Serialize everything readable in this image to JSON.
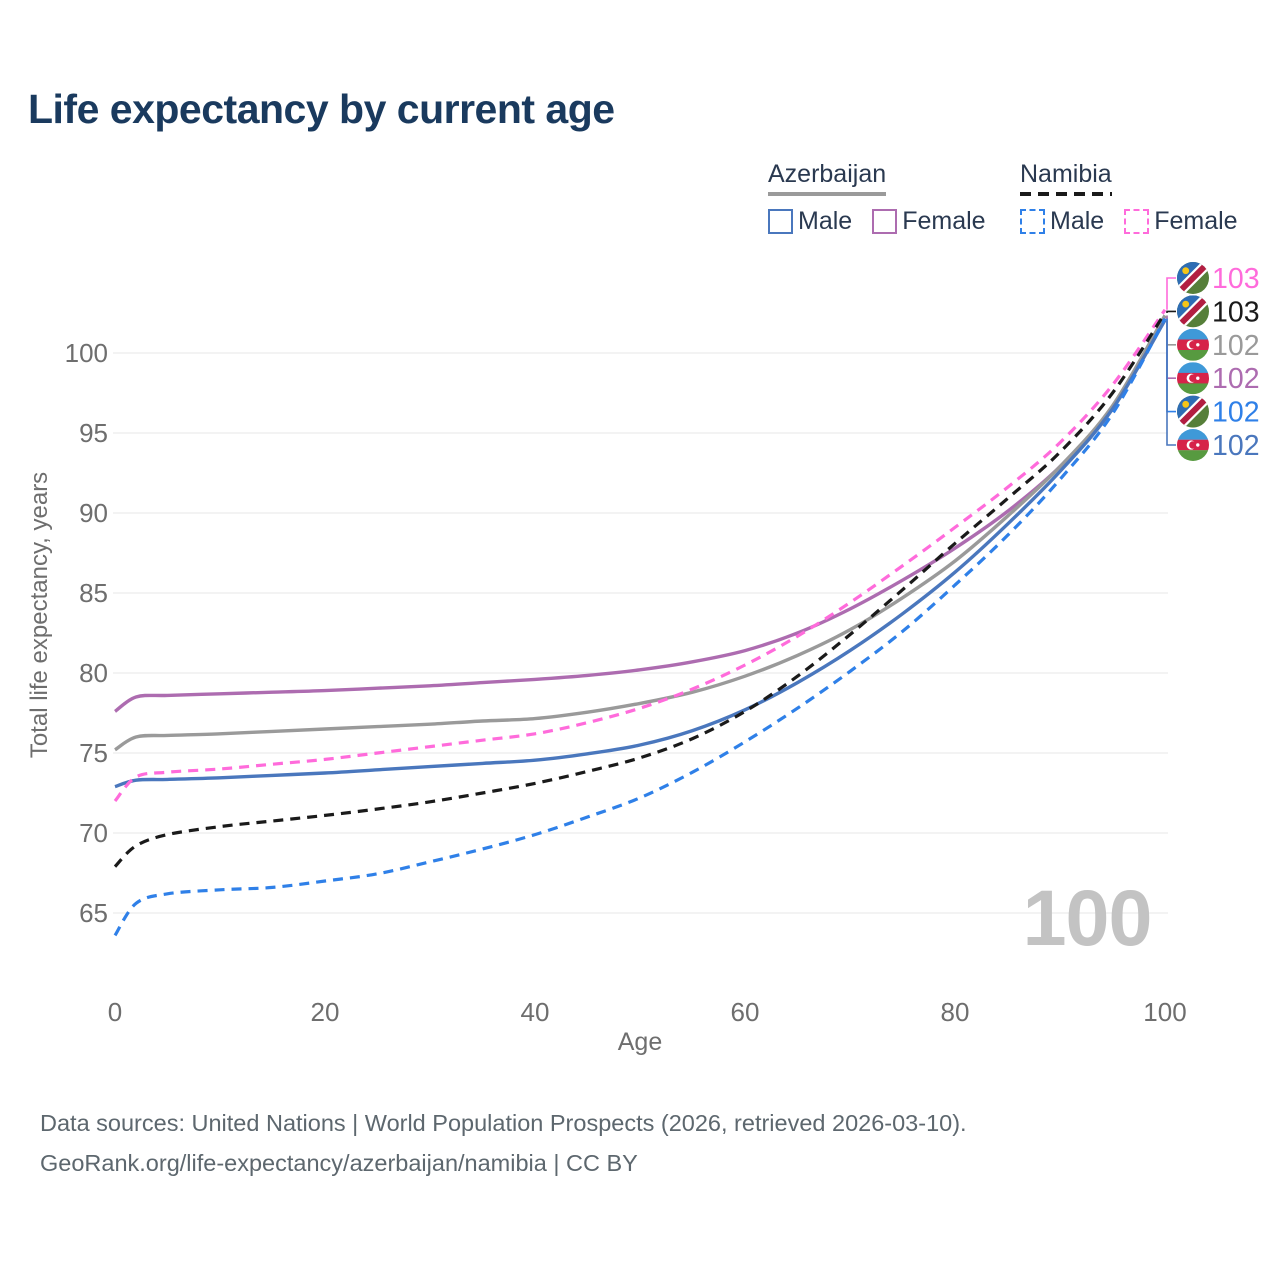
{
  "title": "Life expectancy by current age",
  "watermark": "100",
  "legend": {
    "groups": [
      {
        "country": "Azerbaijan",
        "line_style": "solid",
        "underline_color": "#9a9a9a",
        "items": [
          {
            "label": "Male",
            "color": "#4a77bd",
            "dashed": false
          },
          {
            "label": "Female",
            "color": "#ad6cb0",
            "dashed": false
          }
        ]
      },
      {
        "country": "Namibia",
        "line_style": "dashed",
        "underline_color": "#1a1a1a",
        "items": [
          {
            "label": "Male",
            "color": "#2f80e8",
            "dashed": true
          },
          {
            "label": "Female",
            "color": "#ff6bdb",
            "dashed": true
          }
        ]
      }
    ]
  },
  "footer": {
    "line1": "Data sources: United Nations | World Population Prospects (2026, retrieved 2026-03-10).",
    "line2": "GeoRank.org/life-expectancy/azerbaijan/namibia | CC BY"
  },
  "chart_data": {
    "type": "line",
    "title": "Life expectancy by current age",
    "xlabel": "Age",
    "ylabel": "Total life expectancy, years",
    "xticks": [
      0,
      20,
      40,
      60,
      80,
      100
    ],
    "yticks": [
      65,
      70,
      75,
      80,
      85,
      90,
      95,
      100
    ],
    "xlim": [
      0,
      100
    ],
    "ylim": [
      63,
      104
    ],
    "grid": "horizontal-only",
    "legend_position": "top-right",
    "ages": [
      0,
      2,
      5,
      10,
      15,
      20,
      25,
      30,
      35,
      40,
      45,
      50,
      55,
      60,
      65,
      70,
      75,
      80,
      85,
      90,
      95,
      100
    ],
    "series": [
      {
        "name": "Azerbaijan Female",
        "country": "Azerbaijan",
        "group": "Female",
        "color": "#ad6cb0",
        "dash": "solid",
        "values": [
          77.6,
          78.5,
          78.6,
          78.7,
          78.8,
          78.9,
          79.05,
          79.2,
          79.4,
          79.6,
          79.85,
          80.2,
          80.7,
          81.4,
          82.5,
          84.0,
          85.8,
          87.8,
          90.1,
          92.9,
          96.6,
          102.3
        ]
      },
      {
        "name": "Azerbaijan Both sexes",
        "country": "Azerbaijan",
        "group": "Both sexes",
        "color": "#9a9a9a",
        "dash": "solid",
        "values": [
          75.2,
          76.0,
          76.1,
          76.2,
          76.35,
          76.5,
          76.65,
          76.8,
          77.0,
          77.15,
          77.55,
          78.1,
          78.8,
          79.8,
          81.1,
          82.7,
          84.7,
          87.0,
          89.8,
          92.9,
          96.7,
          102.35
        ]
      },
      {
        "name": "Azerbaijan Male",
        "country": "Azerbaijan",
        "group": "Male",
        "color": "#4a77bd",
        "dash": "solid",
        "values": [
          72.9,
          73.3,
          73.35,
          73.45,
          73.6,
          73.75,
          73.95,
          74.15,
          74.35,
          74.55,
          74.95,
          75.5,
          76.4,
          77.7,
          79.4,
          81.4,
          83.7,
          86.3,
          89.3,
          92.6,
          96.5,
          102.05
        ]
      },
      {
        "name": "Namibia Female",
        "country": "Namibia",
        "group": "Female",
        "color": "#ff6bdb",
        "dash": "dashed",
        "values": [
          72.0,
          73.5,
          73.8,
          74.0,
          74.3,
          74.6,
          75.0,
          75.4,
          75.8,
          76.2,
          76.9,
          77.8,
          79.0,
          80.5,
          82.3,
          84.4,
          86.7,
          89.1,
          91.6,
          94.4,
          98.0,
          102.7
        ]
      },
      {
        "name": "Namibia Both sexes",
        "country": "Namibia",
        "group": "Both sexes",
        "color": "#1a1a1a",
        "dash": "dashed",
        "values": [
          67.9,
          69.2,
          69.9,
          70.4,
          70.75,
          71.1,
          71.5,
          71.95,
          72.5,
          73.1,
          73.85,
          74.7,
          75.9,
          77.6,
          79.8,
          82.4,
          85.2,
          88.1,
          90.9,
          93.8,
          97.5,
          102.5
        ]
      },
      {
        "name": "Namibia Male",
        "country": "Namibia",
        "group": "Male",
        "color": "#2f80e8",
        "dash": "dashed",
        "values": [
          63.6,
          65.6,
          66.2,
          66.45,
          66.6,
          67.0,
          67.45,
          68.2,
          69.0,
          69.9,
          71.0,
          72.2,
          73.8,
          75.7,
          77.8,
          80.1,
          82.6,
          85.5,
          88.6,
          92.1,
          96.2,
          102.15
        ]
      }
    ],
    "end_labels": [
      {
        "value": "103",
        "series_index": 3,
        "flag": "namibia",
        "color": "#ff6bdb"
      },
      {
        "value": "103",
        "series_index": 4,
        "flag": "namibia",
        "color": "#1a1a1a"
      },
      {
        "value": "102",
        "series_index": 1,
        "flag": "azerbaijan",
        "color": "#9a9a9a"
      },
      {
        "value": "102",
        "series_index": 0,
        "flag": "azerbaijan",
        "color": "#ad6cb0"
      },
      {
        "value": "102",
        "series_index": 5,
        "flag": "namibia",
        "color": "#2f80e8"
      },
      {
        "value": "102",
        "series_index": 2,
        "flag": "azerbaijan",
        "color": "#4a77bd"
      }
    ],
    "flag_colors": {
      "azerbaijan": {
        "blue": "#3f99d8",
        "red": "#d62349",
        "green": "#579a40",
        "white": "#ffffff"
      },
      "namibia": {
        "blue": "#2e6db4",
        "red": "#b21e41",
        "green": "#567f39",
        "sun": "#f5c518",
        "white": "#ffffff"
      }
    }
  }
}
